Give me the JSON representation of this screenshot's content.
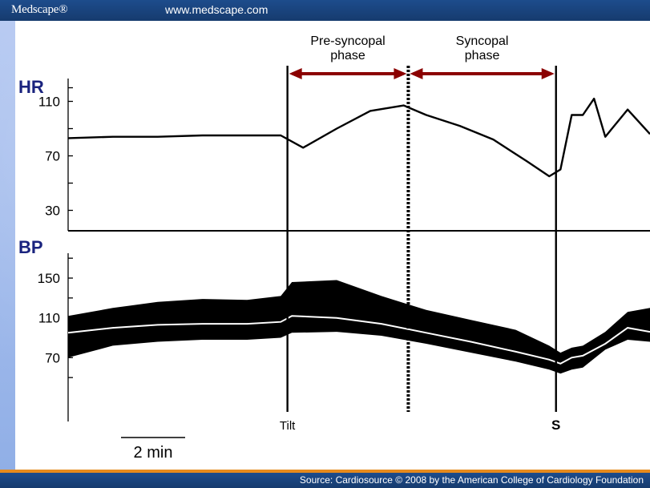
{
  "header": {
    "logo": "Medscape®",
    "url": "www.medscape.com"
  },
  "footer": {
    "source": "Source: Cardiosource © 2008 by the American College of Cardiology Foundation"
  },
  "chart_data": {
    "type": "line",
    "panels": [
      {
        "label": "HR",
        "yticks": [
          "110",
          "70",
          "30"
        ],
        "series": [
          {
            "values_x_min": [
              0,
              2,
              4,
              6,
              8,
              9.5,
              10.5,
              12,
              13.5,
              15,
              16,
              17.5,
              19,
              20.5,
              21.5,
              22,
              22.5,
              23,
              23.5,
              24,
              25,
              26
            ],
            "values_y": [
              83,
              84,
              84,
              85,
              85,
              85,
              76,
              90,
              103,
              107,
              100,
              92,
              82,
              66,
              55,
              60,
              100,
              100,
              112,
              84,
              104,
              86
            ]
          }
        ]
      },
      {
        "label": "BP",
        "yticks": [
          "150",
          "110",
          "70"
        ],
        "series": [
          {
            "name_hidden": "systolic",
            "values_x_min": [
              0,
              2,
              4,
              6,
              8,
              9.5,
              10,
              12,
              14,
              16,
              18,
              20,
              21.5,
              22,
              22.5,
              23,
              24,
              25,
              26
            ],
            "values_y": [
              112,
              120,
              126,
              129,
              128,
              132,
              146,
              148,
              132,
              118,
              108,
              98,
              82,
              75,
              80,
              82,
              96,
              116,
              120
            ]
          },
          {
            "name_hidden": "mean",
            "values_x_min": [
              0,
              2,
              4,
              6,
              8,
              9.5,
              10,
              12,
              14,
              16,
              18,
              20,
              21.5,
              22,
              22.5,
              23,
              24,
              25,
              26
            ],
            "values_y": [
              95,
              100,
              103,
              104,
              104,
              106,
              112,
              110,
              104,
              95,
              86,
              76,
              68,
              64,
              70,
              72,
              84,
              100,
              96
            ]
          },
          {
            "name_hidden": "diastolic",
            "values_x_min": [
              0,
              2,
              4,
              6,
              8,
              9.5,
              10,
              12,
              14,
              16,
              18,
              20,
              21.5,
              22,
              22.5,
              23,
              24,
              25,
              26
            ],
            "values_y": [
              70,
              82,
              86,
              88,
              88,
              90,
              95,
              96,
              92,
              84,
              75,
              66,
              58,
              54,
              58,
              60,
              78,
              88,
              86
            ]
          }
        ]
      }
    ],
    "phases": [
      {
        "label": "Pre-syncopal\nphase",
        "start_min": 9.8,
        "end_min": 15.2
      },
      {
        "label": "Syncopal\nphase",
        "start_min": 15.2,
        "end_min": 21.8
      }
    ],
    "markers": [
      {
        "label": "Tilt",
        "x_min": 9.8
      },
      {
        "label": "S",
        "x_min": 21.8
      }
    ],
    "scale_bar": {
      "label": "2 min",
      "minutes": 2
    },
    "colors": {
      "trace": "#000000",
      "phase_arrow": "#8b0000",
      "panel_label": "#1a237e"
    }
  }
}
